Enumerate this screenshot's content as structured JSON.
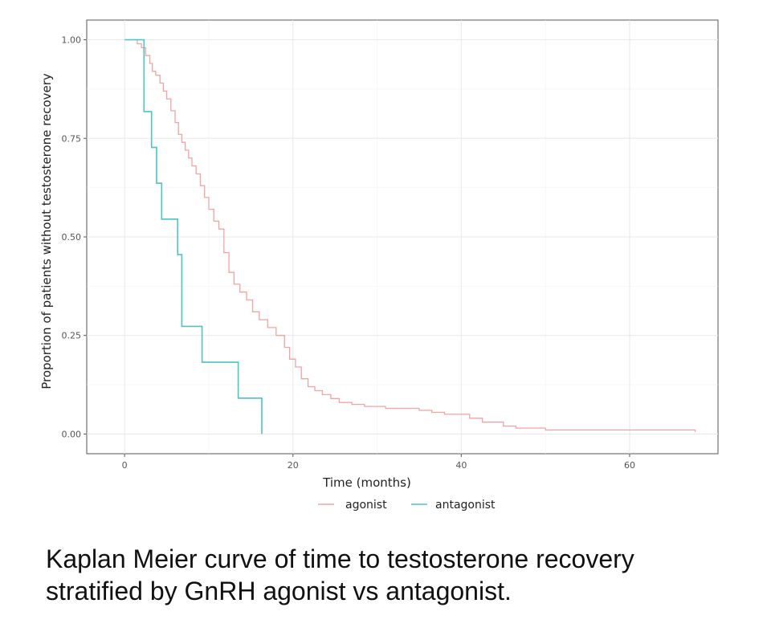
{
  "chart_data": {
    "type": "line",
    "style": "step",
    "xlabel": "Time (months)",
    "ylabel": "Proportion of patients without testosterone recovery",
    "xlim": [
      -4.5,
      70.5
    ],
    "ylim": [
      -0.05,
      1.05
    ],
    "xticks": [
      0,
      20,
      40,
      60
    ],
    "xtick_labels": [
      "0",
      "20",
      "40",
      "60"
    ],
    "yticks": [
      0,
      0.25,
      0.5,
      0.75,
      1.0
    ],
    "ytick_labels": [
      "0.00",
      "0.25",
      "0.50",
      "0.75",
      "1.00"
    ],
    "grid": true,
    "legend_position": "bottom",
    "series": [
      {
        "name": "agonist",
        "color": "#f4a3a3",
        "x": [
          0,
          1.5,
          2.0,
          2.5,
          3.0,
          3.3,
          3.7,
          4.2,
          4.6,
          5.0,
          5.5,
          6.0,
          6.4,
          6.8,
          7.2,
          7.6,
          8.0,
          8.5,
          9.0,
          9.5,
          10.0,
          10.6,
          11.2,
          11.8,
          12.4,
          13.0,
          13.7,
          14.5,
          15.2,
          16.0,
          17.0,
          18.0,
          19.0,
          19.6,
          20.3,
          21.0,
          21.8,
          22.6,
          23.5,
          24.5,
          25.5,
          27.0,
          28.5,
          31.0,
          35.0,
          36.5,
          38.0,
          41.0,
          42.5,
          45.0,
          46.5,
          50.0,
          67.8
        ],
        "y": [
          1.0,
          0.99,
          0.98,
          0.96,
          0.94,
          0.92,
          0.91,
          0.89,
          0.87,
          0.85,
          0.82,
          0.79,
          0.76,
          0.74,
          0.72,
          0.7,
          0.68,
          0.66,
          0.63,
          0.6,
          0.57,
          0.54,
          0.52,
          0.46,
          0.41,
          0.38,
          0.36,
          0.34,
          0.31,
          0.29,
          0.27,
          0.25,
          0.22,
          0.19,
          0.17,
          0.14,
          0.12,
          0.11,
          0.1,
          0.09,
          0.08,
          0.075,
          0.07,
          0.065,
          0.06,
          0.055,
          0.05,
          0.04,
          0.03,
          0.02,
          0.015,
          0.01,
          0.005
        ]
      },
      {
        "name": "antagonist",
        "color": "#4fc3c3",
        "x": [
          0,
          2.3,
          3.2,
          3.8,
          4.4,
          6.3,
          6.8,
          9.2,
          13.5,
          16.3
        ],
        "y": [
          1.0,
          0.818,
          0.727,
          0.636,
          0.545,
          0.455,
          0.273,
          0.182,
          0.091,
          0.0
        ]
      }
    ]
  },
  "caption": {
    "line1": "Kaplan Meier curve of time to testosterone recovery",
    "line2": "stratified by GnRH agonist vs antagonist."
  }
}
